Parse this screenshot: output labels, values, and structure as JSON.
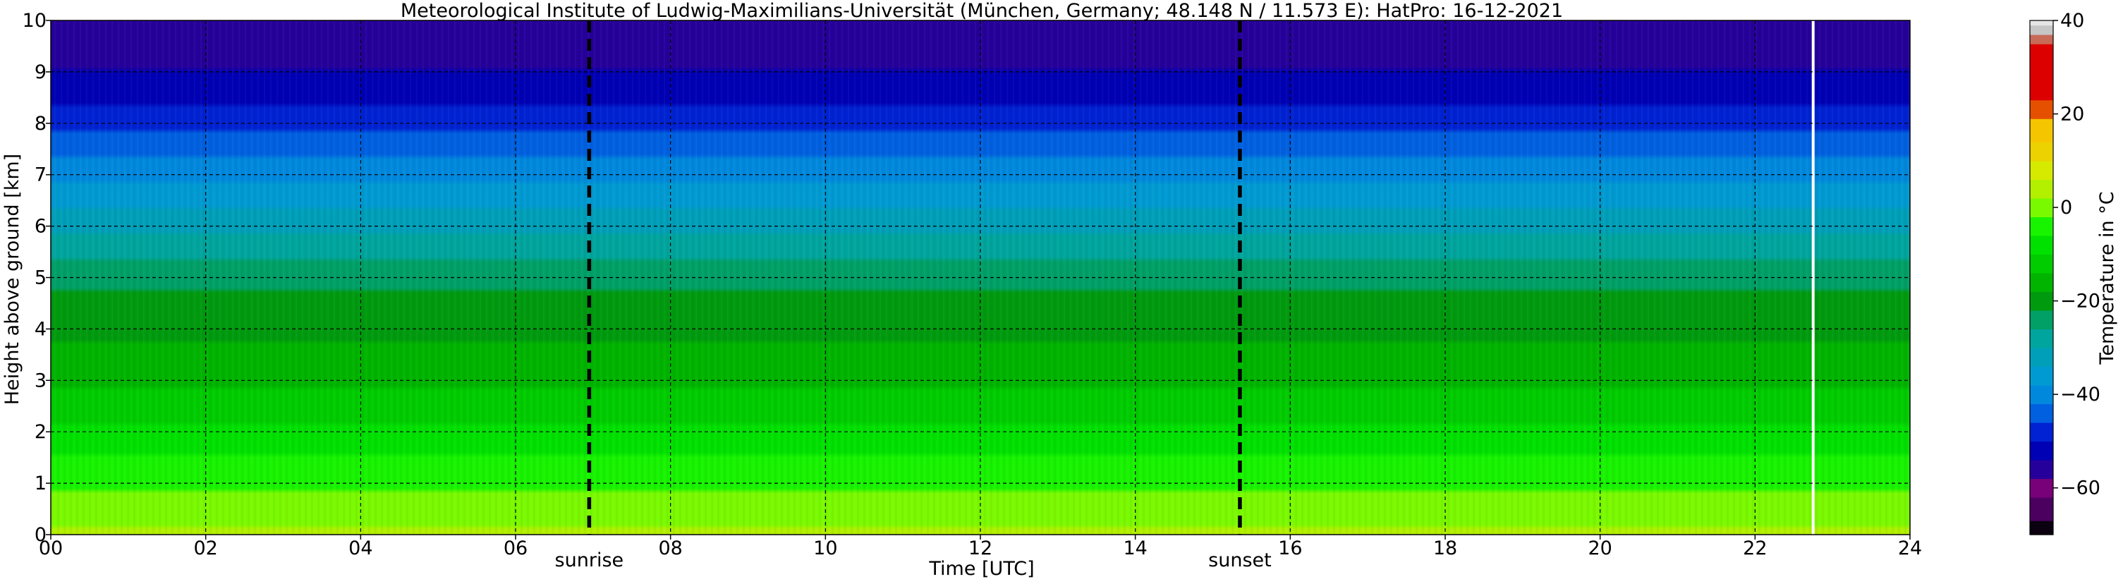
{
  "chart_data": {
    "type": "heatmap",
    "title": "Meteorological Institute of Ludwig-Maximilians-Universität (München, Germany; 48.148 N / 11.573 E):    HatPro: 16-12-2021",
    "xlabel": "Time [UTC]",
    "ylabel": "Height above ground [km]",
    "xlim": [
      0,
      24
    ],
    "ylim": [
      0,
      10
    ],
    "x_ticks": [
      0,
      2,
      4,
      6,
      8,
      10,
      12,
      14,
      16,
      18,
      20,
      22,
      24
    ],
    "x_tick_labels": [
      "00",
      "02",
      "04",
      "06",
      "08",
      "10",
      "12",
      "14",
      "16",
      "18",
      "20",
      "22",
      "24"
    ],
    "y_ticks": [
      0,
      1,
      2,
      3,
      4,
      5,
      6,
      7,
      8,
      9,
      10
    ],
    "y_tick_labels": [
      "0",
      "1",
      "2",
      "3",
      "4",
      "5",
      "6",
      "7",
      "8",
      "9",
      "10"
    ],
    "grid": true,
    "sun_events": [
      {
        "label": "sunrise",
        "time": 6.95
      },
      {
        "label": "sunset",
        "time": 15.35
      }
    ],
    "data_gap_time": 22.75,
    "temperature_profile": {
      "height_km": [
        0,
        0.5,
        1,
        1.5,
        2,
        2.5,
        3,
        3.5,
        4,
        4.5,
        5,
        5.5,
        6,
        6.5,
        7,
        7.5,
        8,
        8.5,
        9,
        9.5,
        10
      ],
      "temperature_c": [
        3,
        0,
        -3,
        -6,
        -9,
        -12,
        -15,
        -17,
        -19,
        -21,
        -23,
        -27,
        -31,
        -35,
        -39,
        -43,
        -47,
        -51,
        -54,
        -56,
        -57
      ]
    },
    "colorbar": {
      "label": "Temperature in °C",
      "range": [
        -70,
        40
      ],
      "ticks": [
        -60,
        -40,
        -20,
        0,
        20,
        40
      ],
      "tick_labels": [
        "−60",
        "−40",
        "−20",
        "0",
        "20",
        "40"
      ],
      "colors": [
        {
          "from": -70,
          "to": -67,
          "color": "#0a0010"
        },
        {
          "from": -67,
          "to": -62,
          "color": "#4b0060"
        },
        {
          "from": -62,
          "to": -58,
          "color": "#780078"
        },
        {
          "from": -58,
          "to": -54,
          "color": "#26009a"
        },
        {
          "from": -54,
          "to": -50,
          "color": "#0000b4"
        },
        {
          "from": -50,
          "to": -46,
          "color": "#0022d2"
        },
        {
          "from": -46,
          "to": -42,
          "color": "#0060e0"
        },
        {
          "from": -42,
          "to": -38,
          "color": "#0088dd"
        },
        {
          "from": -38,
          "to": -34,
          "color": "#009ad2"
        },
        {
          "from": -34,
          "to": -30,
          "color": "#009fb9"
        },
        {
          "from": -30,
          "to": -26,
          "color": "#00a59d"
        },
        {
          "from": -26,
          "to": -22,
          "color": "#00a067"
        },
        {
          "from": -22,
          "to": -18,
          "color": "#009a0e"
        },
        {
          "from": -18,
          "to": -14,
          "color": "#00b400"
        },
        {
          "from": -14,
          "to": -10,
          "color": "#00cc00"
        },
        {
          "from": -10,
          "to": -6,
          "color": "#00e100"
        },
        {
          "from": -6,
          "to": -2,
          "color": "#18f400"
        },
        {
          "from": -2,
          "to": 2,
          "color": "#7afa00"
        },
        {
          "from": 2,
          "to": 6,
          "color": "#b2f000"
        },
        {
          "from": 6,
          "to": 10,
          "color": "#d6ea00"
        },
        {
          "from": 10,
          "to": 14,
          "color": "#ecd200"
        },
        {
          "from": 14,
          "to": 19,
          "color": "#f5c500"
        },
        {
          "from": 19,
          "to": 23,
          "color": "#e55000"
        },
        {
          "from": 23,
          "to": 35,
          "color": "#dd0000"
        },
        {
          "from": 35,
          "to": 37,
          "color": "#c86a58"
        },
        {
          "from": 37,
          "to": 39,
          "color": "#c6c6c6"
        },
        {
          "from": 39,
          "to": 40,
          "color": "#e6e6e6"
        }
      ]
    }
  }
}
